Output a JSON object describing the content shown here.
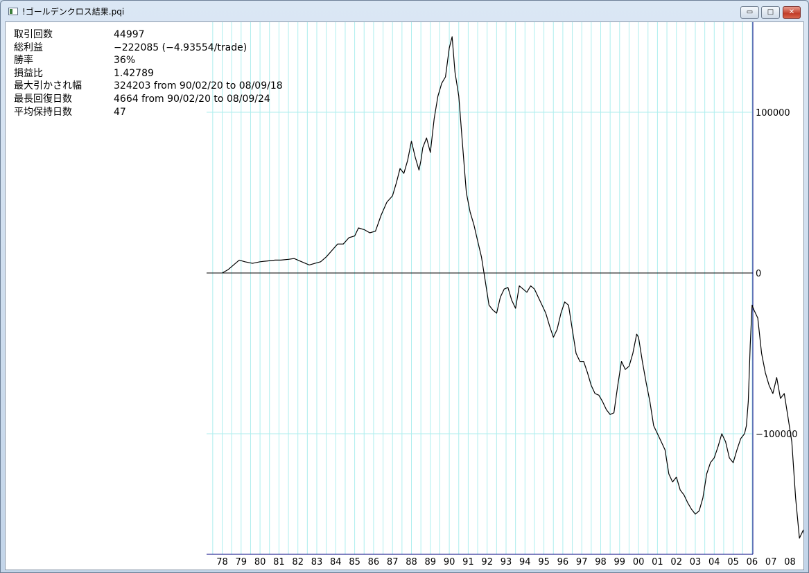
{
  "window": {
    "title": "!ゴールデンクロス結果.pqi",
    "buttons": {
      "minimize": "▭",
      "maximize": "□",
      "close": "✕"
    }
  },
  "stats": [
    {
      "label": "取引回数",
      "value": "44997"
    },
    {
      "label": "総利益",
      "value": "−222085 (−4.93554/trade)"
    },
    {
      "label": "勝率",
      "value": "36%"
    },
    {
      "label": "損益比",
      "value": "1.42789"
    },
    {
      "label": "最大引かされ幅",
      "value": "324203 from 90/02/20 to 08/09/18"
    },
    {
      "label": "最長回復日数",
      "value": "4664 from 90/02/20 to 08/09/24"
    },
    {
      "label": "平均保持日数",
      "value": "47"
    }
  ],
  "colors": {
    "grid": "#aeeeee",
    "line": "#000000",
    "axis": "#000080"
  },
  "chart_data": {
    "type": "line",
    "title": "",
    "xlabel": "",
    "ylabel": "",
    "x_tick_labels": [
      "78",
      "79",
      "80",
      "81",
      "82",
      "83",
      "84",
      "85",
      "86",
      "87",
      "88",
      "89",
      "90",
      "91",
      "92",
      "93",
      "94",
      "95",
      "96",
      "97",
      "98",
      "99",
      "00",
      "01",
      "02",
      "03",
      "04",
      "05",
      "06",
      "07",
      "08"
    ],
    "y_tick_labels": [
      "100000",
      "0",
      "−100000"
    ],
    "y_ticks": [
      100000,
      0,
      -100000
    ],
    "xlim": [
      1977.6,
      2008.9
    ],
    "ylim": [
      -175000,
      150000
    ],
    "grid": true,
    "series": [
      {
        "x": [
          1978.0,
          1978.3,
          1978.6,
          1978.9,
          1979.2,
          1979.6,
          1980.0,
          1980.4,
          1980.8,
          1981.1,
          1981.5,
          1981.8,
          1982.2,
          1982.6,
          1982.9,
          1983.2,
          1983.5,
          1983.8,
          1984.1,
          1984.4,
          1984.7,
          1985.0,
          1985.2,
          1985.5,
          1985.8,
          1986.1,
          1986.4,
          1986.7,
          1987.0,
          1987.2,
          1987.4,
          1987.6,
          1987.8,
          1988.0,
          1988.2,
          1988.4,
          1988.5,
          1988.6,
          1988.8,
          1989.0,
          1989.2,
          1989.4,
          1989.6,
          1989.8,
          1990.0,
          1990.15,
          1990.3,
          1990.5,
          1990.7,
          1990.9,
          1991.1,
          1991.3,
          1991.5,
          1991.7,
          1991.9,
          1992.1,
          1992.3,
          1992.5,
          1992.7,
          1992.9,
          1993.1,
          1993.3,
          1993.5,
          1993.7,
          1993.9,
          1994.1,
          1994.3,
          1994.5,
          1994.7,
          1994.9,
          1995.1,
          1995.3,
          1995.5,
          1995.7,
          1995.9,
          1996.1,
          1996.3,
          1996.5,
          1996.7,
          1996.9,
          1997.1,
          1997.3,
          1997.5,
          1997.7,
          1997.9,
          1998.1,
          1998.3,
          1998.5,
          1998.7,
          1998.9,
          1999.1,
          1999.3,
          1999.5,
          1999.7,
          1999.9,
          2000.0,
          2000.2,
          2000.4,
          2000.6,
          2000.8,
          2001.0,
          2001.2,
          2001.4,
          2001.6,
          2001.8,
          2002.0,
          2002.2,
          2002.4,
          2002.6,
          2002.8,
          2003.0,
          2003.2,
          2003.4,
          2003.6,
          2003.8,
          2004.0,
          2004.2,
          2004.4,
          2004.6,
          2004.8,
          2005.0,
          2005.2,
          2005.4,
          2005.6,
          2005.7,
          2005.8,
          2005.9,
          2006.0,
          2006.1,
          2006.3,
          2006.5,
          2006.7,
          2006.9,
          2007.1,
          2007.3,
          2007.5,
          2007.7,
          2007.9,
          2008.1,
          2008.3,
          2008.5,
          2008.7,
          2008.9
        ],
        "y": [
          0,
          2000,
          5000,
          8000,
          7000,
          6000,
          7000,
          7500,
          8000,
          8000,
          8500,
          9000,
          7000,
          5000,
          6000,
          7000,
          10000,
          14000,
          18000,
          18000,
          22000,
          23000,
          28000,
          27000,
          25000,
          26000,
          36000,
          44000,
          48000,
          56000,
          65000,
          62000,
          70000,
          82000,
          72000,
          64000,
          70000,
          78000,
          84000,
          75000,
          96000,
          110000,
          118000,
          122000,
          140000,
          147000,
          125000,
          110000,
          80000,
          50000,
          38000,
          30000,
          20000,
          10000,
          -5000,
          -20000,
          -23000,
          -25000,
          -15000,
          -10000,
          -9000,
          -17000,
          -22000,
          -8000,
          -10000,
          -12000,
          -8000,
          -10000,
          -15000,
          -20000,
          -25000,
          -33000,
          -40000,
          -35000,
          -25000,
          -18000,
          -20000,
          -35000,
          -50000,
          -55000,
          -55000,
          -62000,
          -70000,
          -75000,
          -76000,
          -80000,
          -85000,
          -88000,
          -87000,
          -70000,
          -55000,
          -60000,
          -58000,
          -50000,
          -38000,
          -40000,
          -55000,
          -68000,
          -80000,
          -95000,
          -100000,
          -105000,
          -110000,
          -125000,
          -130000,
          -127000,
          -135000,
          -138000,
          -143000,
          -147000,
          -150000,
          -148000,
          -140000,
          -125000,
          -118000,
          -115000,
          -108000,
          -100000,
          -105000,
          -115000,
          -118000,
          -110000,
          -103000,
          -100000,
          -95000,
          -80000,
          -45000,
          -20000,
          -23000,
          -28000,
          -50000,
          -62000,
          -70000,
          -75000,
          -65000,
          -78000,
          -75000,
          -90000,
          -105000,
          -140000,
          -165000,
          -160000,
          -175000
        ]
      }
    ]
  }
}
